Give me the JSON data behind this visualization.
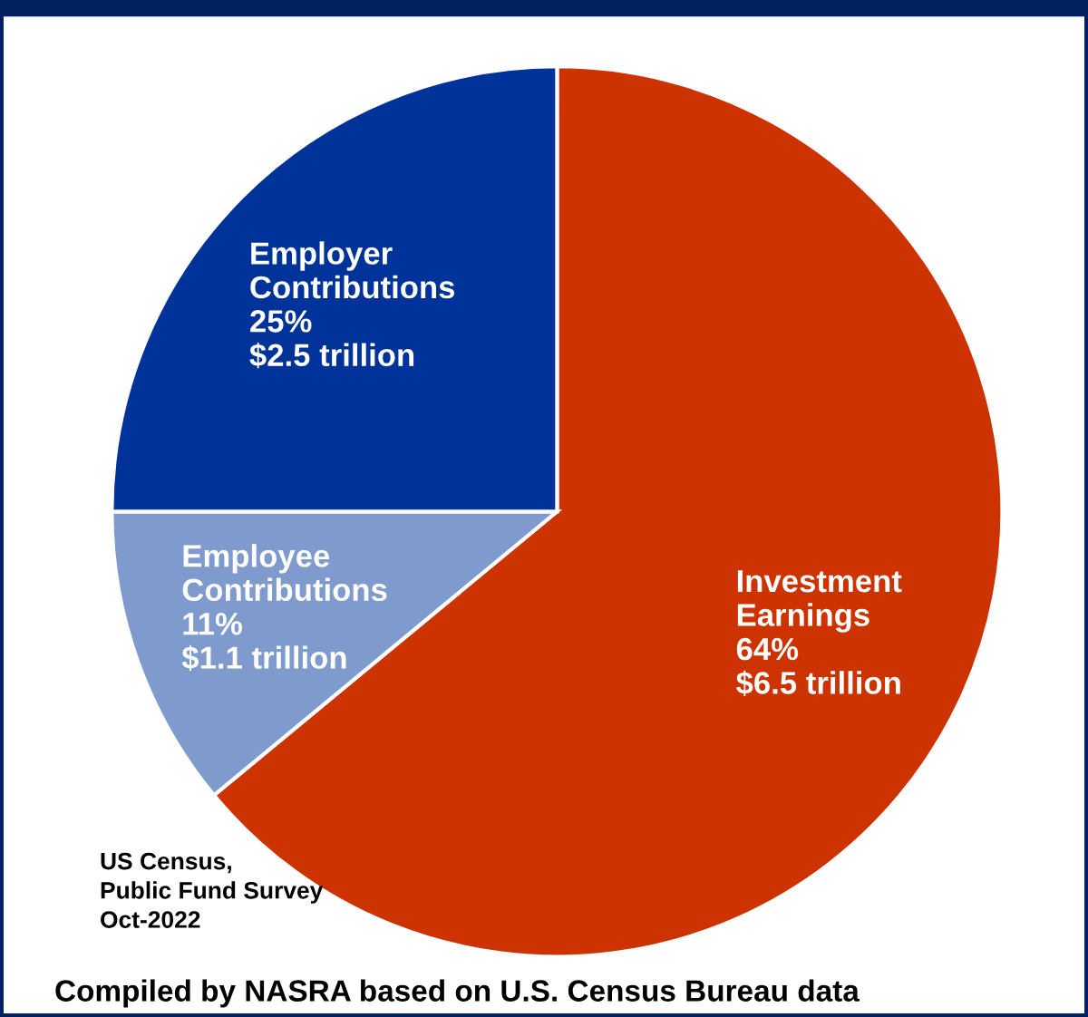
{
  "chart_data": {
    "type": "pie",
    "categories": [
      "Investment\nEarnings",
      "Employee\nContributions",
      "Employer\nContributions"
    ],
    "values": [
      64,
      11,
      25
    ],
    "value_labels": [
      "64%\n$6.5 trillion",
      "11%\n$1.1 trillion",
      "25%\n$2.5 trillion"
    ],
    "colors": [
      "#cc3300",
      "#7f9acd",
      "#003399"
    ],
    "annotations": [
      "US Census,\nPublic Fund Survey\nOct-2022",
      "Compiled by NASRA based on U.S. Census Bureau data"
    ],
    "legend": false
  }
}
